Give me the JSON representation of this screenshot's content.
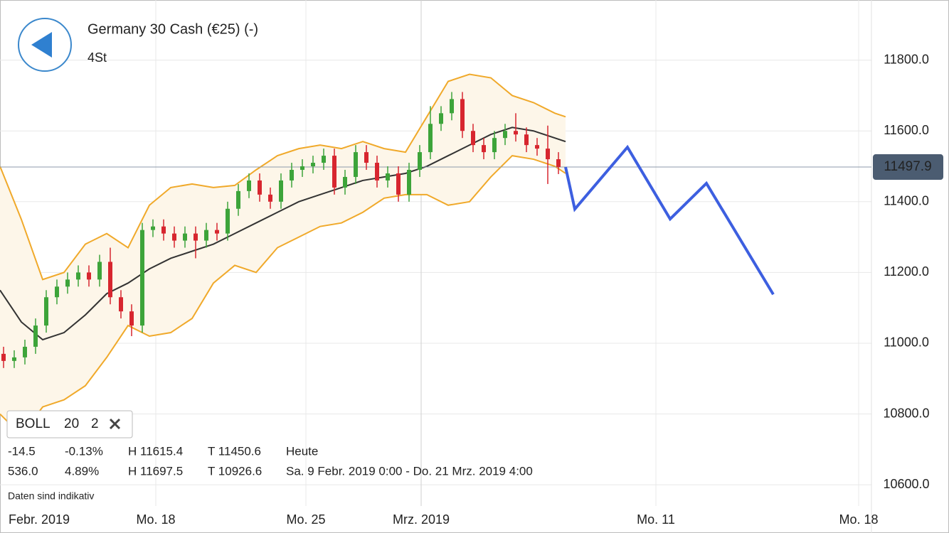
{
  "header": {
    "title": "Germany 30 Cash (€25) (-)",
    "interval": "4St"
  },
  "indicator": {
    "name": "BOLL",
    "period": 20,
    "stddev": 2
  },
  "stats": [
    {
      "change": "-14.5",
      "percent": "-0.13%",
      "high": "H 11615.4",
      "low": "T 11450.6",
      "range": "Heute"
    },
    {
      "change": "536.0",
      "percent": "4.89%",
      "high": "H 11697.5",
      "low": "T 10926.6",
      "range": "Sa. 9 Febr. 2019 0:00 - Do. 21 Mrz. 2019 4:00"
    }
  ],
  "note": "Daten sind indikativ",
  "chart_data": {
    "type": "candlestick",
    "x": [
      5,
      20,
      35,
      50,
      65,
      80,
      95,
      110,
      125,
      140,
      155,
      170,
      185,
      200,
      215,
      230,
      245,
      260,
      275,
      290,
      305,
      320,
      335,
      350,
      365,
      380,
      395,
      410,
      425,
      440,
      455,
      470,
      485,
      500,
      515,
      530,
      545,
      560,
      575,
      590,
      605,
      620,
      635,
      650,
      665,
      680,
      695,
      710,
      725,
      740,
      755,
      770,
      785
    ],
    "open": [
      10970,
      10950,
      10960,
      10990,
      11050,
      11130,
      11160,
      11180,
      11200,
      11180,
      11230,
      11130,
      11090,
      11050,
      11320,
      11330,
      11310,
      11290,
      11310,
      11290,
      11320,
      11310,
      11380,
      11430,
      11460,
      11420,
      11400,
      11460,
      11490,
      11500,
      11510,
      11530,
      11440,
      11470,
      11540,
      11510,
      11460,
      11480,
      11420,
      11490,
      11540,
      11620,
      11650,
      11690,
      11600,
      11560,
      11540,
      11580,
      11600,
      11590,
      11560,
      11550,
      11520
    ],
    "high": [
      10990,
      10980,
      11010,
      11070,
      11150,
      11180,
      11200,
      11220,
      11220,
      11250,
      11270,
      11150,
      11110,
      11340,
      11350,
      11350,
      11330,
      11330,
      11330,
      11340,
      11340,
      11400,
      11450,
      11480,
      11480,
      11440,
      11480,
      11510,
      11520,
      11530,
      11550,
      11550,
      11490,
      11560,
      11560,
      11530,
      11500,
      11500,
      11510,
      11560,
      11670,
      11670,
      11710,
      11710,
      11620,
      11580,
      11600,
      11620,
      11650,
      11610,
      11580,
      11615,
      11540
    ],
    "low": [
      10930,
      10930,
      10940,
      10970,
      11030,
      11110,
      11140,
      11160,
      11160,
      11160,
      11110,
      11070,
      11020,
      11030,
      11300,
      11290,
      11270,
      11270,
      11240,
      11270,
      11290,
      11290,
      11360,
      11410,
      11400,
      11380,
      11380,
      11440,
      11470,
      11480,
      11490,
      11420,
      11420,
      11450,
      11490,
      11440,
      11440,
      11400,
      11400,
      11470,
      11520,
      11600,
      11630,
      11580,
      11540,
      11520,
      11520,
      11560,
      11570,
      11540,
      11530,
      11450,
      11478
    ],
    "close": [
      10950,
      10960,
      10990,
      11050,
      11130,
      11160,
      11180,
      11200,
      11180,
      11230,
      11130,
      11090,
      11050,
      11320,
      11330,
      11310,
      11290,
      11310,
      11290,
      11320,
      11310,
      11380,
      11430,
      11460,
      11420,
      11400,
      11460,
      11490,
      11500,
      11510,
      11530,
      11440,
      11470,
      11540,
      11510,
      11460,
      11480,
      11420,
      11490,
      11540,
      11620,
      11650,
      11690,
      11600,
      11560,
      11540,
      11580,
      11600,
      11590,
      11560,
      11550,
      11520,
      11498
    ],
    "up_color": "#3da43a",
    "down_color": "#d7262f",
    "bollinger": {
      "x": [
        0,
        30,
        60,
        90,
        120,
        150,
        180,
        210,
        240,
        270,
        300,
        330,
        360,
        390,
        420,
        450,
        480,
        510,
        540,
        570,
        600,
        630,
        660,
        690,
        720,
        750,
        780,
        795
      ],
      "upper": [
        11500,
        11350,
        11180,
        11200,
        11280,
        11310,
        11270,
        11390,
        11440,
        11450,
        11440,
        11446,
        11490,
        11530,
        11550,
        11560,
        11550,
        11570,
        11550,
        11540,
        11640,
        11740,
        11760,
        11750,
        11700,
        11680,
        11650,
        11640
      ],
      "middle": [
        11150,
        11060,
        11010,
        11030,
        11080,
        11140,
        11170,
        11210,
        11240,
        11260,
        11280,
        11310,
        11340,
        11370,
        11400,
        11420,
        11440,
        11460,
        11470,
        11480,
        11500,
        11530,
        11560,
        11590,
        11610,
        11600,
        11580,
        11570
      ],
      "lower": [
        10800,
        10740,
        10820,
        10840,
        10880,
        10960,
        11050,
        11020,
        11030,
        11070,
        11170,
        11220,
        11200,
        11270,
        11300,
        11330,
        11340,
        11370,
        11410,
        11420,
        11420,
        11390,
        11400,
        11470,
        11530,
        11520,
        11500,
        11480
      ],
      "band_color": "#f0a92a",
      "middle_color": "#333333",
      "fill": "#fdf6e9"
    },
    "drawing": {
      "x": [
        795,
        808,
        882,
        942,
        993,
        1087
      ],
      "y": [
        11498,
        11379,
        11554,
        11351,
        11452,
        11138
      ],
      "color": "#3d5fe0"
    },
    "last_price": 11497.9,
    "xlim": [
      0,
      1225
    ],
    "xticks": [
      {
        "value": 0,
        "label": "Febr. 2019"
      },
      {
        "value": 219,
        "label": "Mo. 18"
      },
      {
        "value": 430,
        "label": "Mo. 25"
      },
      {
        "value": 592,
        "label": "Mrz. 2019"
      },
      {
        "value": 922,
        "label": "Mo. 11"
      },
      {
        "value": 1207,
        "label": "Mo. 18"
      }
    ],
    "ylim": [
      10540,
      11970
    ],
    "yticks": [
      {
        "value": 10600,
        "label": "10600.0"
      },
      {
        "value": 10800,
        "label": "10800.0"
      },
      {
        "value": 11000,
        "label": "11000.0"
      },
      {
        "value": 11200,
        "label": "11200.0"
      },
      {
        "value": 11400,
        "label": "11400.0"
      },
      {
        "value": 11600,
        "label": "11600.0"
      },
      {
        "value": 11800,
        "label": "11800.0"
      }
    ],
    "grid": true
  }
}
